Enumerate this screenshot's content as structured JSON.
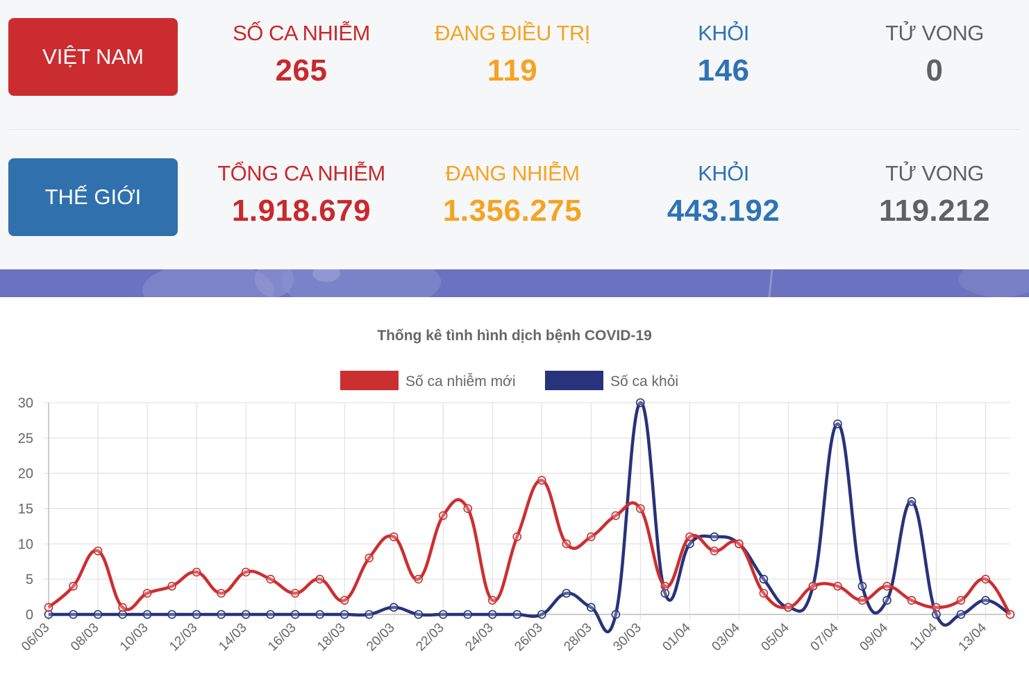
{
  "vietnam": {
    "label": "VIỆT NAM",
    "stats": [
      {
        "label": "SỐ CA NHIỄM",
        "value": "265",
        "color": "#c9292c"
      },
      {
        "label": "ĐANG ĐIỀU TRỊ",
        "value": "119",
        "color": "#f6a322"
      },
      {
        "label": "KHỎI",
        "value": "146",
        "color": "#2e74b5"
      },
      {
        "label": "TỬ VONG",
        "value": "0",
        "color": "#5f6265"
      }
    ]
  },
  "world": {
    "label": "THẾ GIỚI",
    "stats": [
      {
        "label": "TỔNG CA NHIỄM",
        "value": "1.918.679",
        "color": "#c9292c"
      },
      {
        "label": "ĐANG NHIỄM",
        "value": "1.356.275",
        "color": "#f6a322"
      },
      {
        "label": "KHỎI",
        "value": "443.192",
        "color": "#2e74b5"
      },
      {
        "label": "TỬ VONG",
        "value": "119.212",
        "color": "#5f6265"
      }
    ]
  },
  "colors": {
    "vietnam_button": "#cb2c2f",
    "world_button": "#2f70ad",
    "banner": "#6b72c0"
  },
  "chart_data": {
    "type": "line",
    "title": "Thống kê tình hình dịch bệnh COVID-19",
    "xlabel": "",
    "ylabel": "",
    "ylim": [
      0,
      30
    ],
    "yticks": [
      0,
      5,
      10,
      15,
      20,
      25,
      30
    ],
    "grid": true,
    "legend_position": "top",
    "categories": [
      "06/03",
      "07/03",
      "08/03",
      "09/03",
      "10/03",
      "11/03",
      "12/03",
      "13/03",
      "14/03",
      "15/03",
      "16/03",
      "17/03",
      "18/03",
      "19/03",
      "20/03",
      "21/03",
      "22/03",
      "23/03",
      "24/03",
      "25/03",
      "26/03",
      "27/03",
      "28/03",
      "29/03",
      "30/03",
      "31/03",
      "01/04",
      "02/04",
      "03/04",
      "04/04",
      "05/04",
      "06/04",
      "07/04",
      "08/04",
      "09/04",
      "10/04",
      "11/04",
      "12/04",
      "13/04",
      "14/04"
    ],
    "tick_labels": [
      "06/03",
      "08/03",
      "10/03",
      "12/03",
      "14/03",
      "16/03",
      "18/03",
      "20/03",
      "22/03",
      "24/03",
      "26/03",
      "28/03",
      "30/03",
      "01/04",
      "03/04",
      "05/04",
      "07/04",
      "09/04",
      "11/04",
      "13/04"
    ],
    "series": [
      {
        "name": "Số ca nhiễm mới",
        "color": "#cc2f30",
        "values": [
          1,
          4,
          9,
          1,
          3,
          4,
          6,
          3,
          6,
          5,
          3,
          5,
          2,
          8,
          11,
          5,
          14,
          15,
          2,
          11,
          19,
          10,
          11,
          14,
          15,
          4,
          11,
          9,
          10,
          3,
          1,
          4,
          4,
          2,
          4,
          2,
          1,
          2,
          5,
          0
        ]
      },
      {
        "name": "Số ca khỏi",
        "color": "#27337a",
        "values": [
          0,
          0,
          0,
          0,
          0,
          0,
          0,
          0,
          0,
          0,
          0,
          0,
          0,
          0,
          1,
          0,
          0,
          0,
          0,
          0,
          0,
          3,
          1,
          0,
          30,
          3,
          10,
          11,
          10,
          5,
          1,
          4,
          27,
          4,
          2,
          16,
          0,
          0,
          2,
          0
        ]
      }
    ]
  }
}
